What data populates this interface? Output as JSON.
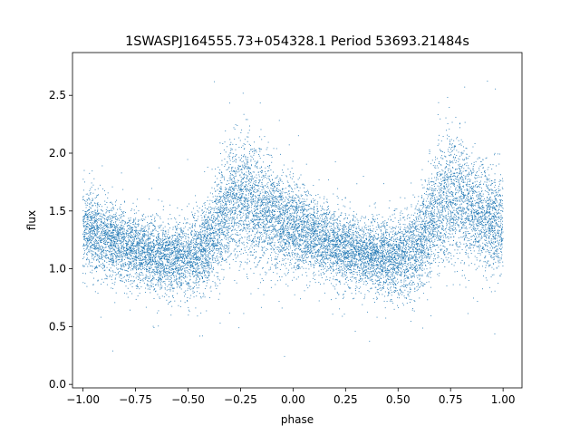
{
  "chart_data": {
    "type": "scatter",
    "title": "1SWASPJ164555.73+054328.1 Period 53693.21484s",
    "xlabel": "phase",
    "ylabel": "flux",
    "xlim": [
      -1.05,
      1.09
    ],
    "ylim": [
      -0.03,
      2.87
    ],
    "xticks": [
      -1.0,
      -0.75,
      -0.5,
      -0.25,
      0.0,
      0.25,
      0.5,
      0.75,
      1.0
    ],
    "xtick_labels": [
      "−1.00",
      "−0.75",
      "−0.50",
      "−0.25",
      "0.00",
      "0.25",
      "0.50",
      "0.75",
      "1.00"
    ],
    "yticks": [
      0.0,
      0.5,
      1.0,
      1.5,
      2.0,
      2.5
    ],
    "ytick_labels": [
      "0.0",
      "0.5",
      "1.0",
      "1.5",
      "2.0",
      "2.5"
    ],
    "grid": false,
    "legend": "none",
    "marker_color": "#1f77b4",
    "series": [
      {
        "x": [
          -1.0,
          -0.9,
          -0.8,
          -0.7,
          -0.6,
          -0.5,
          -0.4,
          -0.3,
          -0.25,
          -0.2,
          -0.1,
          0.0,
          0.1,
          0.2,
          0.3,
          0.4,
          0.5,
          0.6,
          0.7,
          0.75,
          0.8,
          0.9,
          1.0
        ],
        "y": [
          1.35,
          1.28,
          1.2,
          1.14,
          1.1,
          1.08,
          1.2,
          1.55,
          1.62,
          1.6,
          1.45,
          1.35,
          1.28,
          1.2,
          1.14,
          1.1,
          1.08,
          1.2,
          1.55,
          1.62,
          1.6,
          1.45,
          1.35
        ],
        "scatter_sd": [
          0.18,
          0.16,
          0.15,
          0.15,
          0.15,
          0.16,
          0.2,
          0.25,
          0.26,
          0.25,
          0.22,
          0.2,
          0.17,
          0.16,
          0.15,
          0.15,
          0.16,
          0.2,
          0.25,
          0.26,
          0.25,
          0.22,
          0.2
        ],
        "n_points": 14000
      }
    ]
  }
}
